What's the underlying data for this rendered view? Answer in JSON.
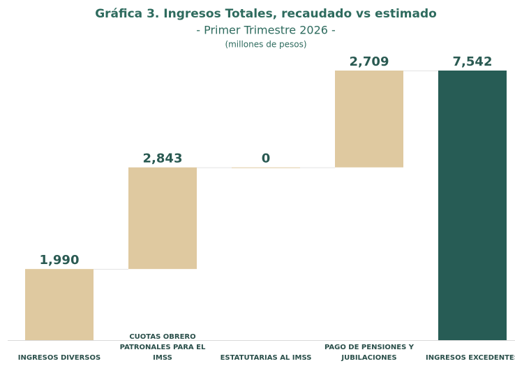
{
  "chart_data": {
    "type": "waterfall",
    "title": "Gráfica 3. Ingresos Totales, recaudado vs estimado",
    "subtitle": "- Primer Trimestre 2026 -",
    "unit": "(millones de pesos)",
    "categories": [
      "INGRESOS DIVERSOS",
      "CUOTAS OBRERO\nPATRONALES PARA EL IMSS",
      "ESTATUTARIAS AL IMSS",
      "PAGO DE PENSIONES Y\nJUBILACIONES",
      "INGRESOS EXCEDENTES"
    ],
    "values": [
      1990,
      2843,
      0,
      2709,
      7542
    ],
    "value_labels": [
      "1,990",
      "2,843",
      "0",
      "2,709",
      "7,542"
    ],
    "total": [
      false,
      false,
      false,
      false,
      true
    ],
    "colors": [
      "#dfc9a0",
      "#dfc9a0",
      "#dfc9a0",
      "#dfc9a0",
      "#275c55"
    ]
  }
}
